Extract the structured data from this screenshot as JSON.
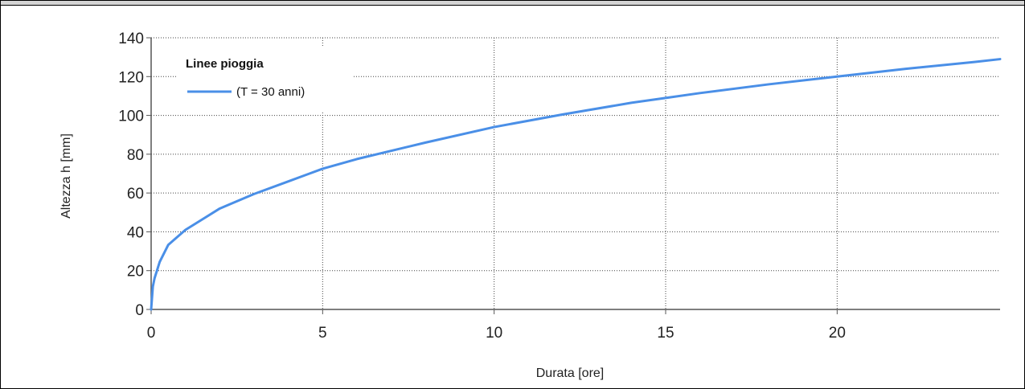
{
  "chart_data": {
    "type": "line",
    "title": "",
    "xlabel": "Durata [ore]",
    "ylabel": "Altezza h [mm]",
    "xlim": [
      0,
      24.75
    ],
    "ylim": [
      0,
      140
    ],
    "x_ticks": [
      0,
      5,
      10,
      15,
      20
    ],
    "y_ticks": [
      0,
      20,
      40,
      60,
      80,
      100,
      120,
      140
    ],
    "grid": true,
    "legend": {
      "title": "Linee pioggia",
      "placement": "top-left"
    },
    "series": [
      {
        "name": "(T = 30 anni)",
        "color": "#4a8fe7",
        "x": [
          0,
          0.05,
          0.1,
          0.25,
          0.5,
          1,
          2,
          3,
          4,
          5,
          6,
          8,
          10,
          12,
          14,
          15,
          16,
          18,
          20,
          22,
          24,
          24.75
        ],
        "y": [
          0,
          11.8,
          16.1,
          24.5,
          33.3,
          41,
          52,
          59.5,
          66,
          72.5,
          77.5,
          86,
          94,
          100.5,
          106.5,
          109,
          111.5,
          116,
          120,
          124,
          127.5,
          129
        ]
      }
    ]
  }
}
